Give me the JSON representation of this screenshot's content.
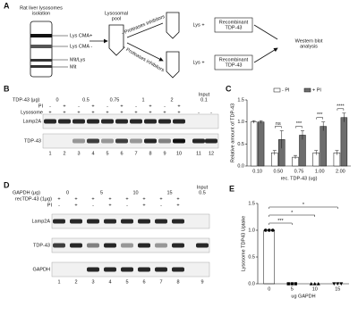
{
  "panels": [
    "A",
    "B",
    "C",
    "D",
    "E"
  ],
  "schematic": {
    "title": [
      "Rat liver lysosomes",
      "isolation"
    ],
    "fractions": [
      "Lys CMA+",
      "Lys CMA -",
      "Mit/Lys",
      "Mit"
    ],
    "pool": [
      "Lysosomal",
      "pool"
    ],
    "inhibitors": [
      "- Proteases inhibitors",
      "+ Proteases inhibitors"
    ],
    "lys": [
      "Lys +",
      "Lys +"
    ],
    "recombinant": [
      [
        "Recombinant",
        "TDP-43"
      ],
      [
        "Recombinant",
        "TDP-43"
      ]
    ],
    "western": [
      "Western blot",
      "analysis"
    ]
  },
  "blot_b": {
    "group_label": "TDP-43 (μg)",
    "groups": [
      "0",
      "0.5",
      "0.75",
      "1",
      "2"
    ],
    "input_label": "Input",
    "input_amount": "0.1",
    "rows": [
      {
        "label": "PI",
        "signs": [
          "-",
          "+",
          "-",
          "+",
          "-",
          "+",
          "-",
          "+",
          "-",
          "+"
        ]
      },
      {
        "label": "Lysosome",
        "signs": [
          "+",
          "+",
          "+",
          "+",
          "+",
          "+",
          "+",
          "+",
          "+",
          "+",
          "-",
          "-"
        ]
      }
    ],
    "bands": [
      "Lamp2A",
      "TDP-43"
    ],
    "lanes": [
      "1",
      "2",
      "3",
      "4",
      "5",
      "6",
      "7",
      "8",
      "9",
      "10",
      "11",
      "12"
    ]
  },
  "blot_d": {
    "group_label": "GAPDH (μg)",
    "groups": [
      "0",
      "5",
      "10",
      "15"
    ],
    "input_label": "Input",
    "input_amount": "0.5",
    "rows": [
      {
        "label": "recTDP-43 (1μg)",
        "signs": [
          "+",
          "+",
          "+",
          "+",
          "+",
          "+",
          "+",
          "+"
        ]
      },
      {
        "label": "PI",
        "signs": [
          "-",
          "+",
          "-",
          "+",
          "-",
          "+",
          "-",
          "+"
        ]
      }
    ],
    "bands": [
      "Lamp2A",
      "TDP-43",
      "GAPDH"
    ],
    "lanes": [
      "1",
      "2",
      "3",
      "4",
      "5",
      "6",
      "7",
      "8",
      "9"
    ]
  },
  "chart_data": [
    {
      "type": "bar",
      "xlabel": "rec. TDP-43 (ug)",
      "ylabel": "Relative amount of TDP-43",
      "categories": [
        "0.10",
        "0.50",
        "0.75",
        "1.00",
        "2.00"
      ],
      "series": [
        {
          "name": "- PI",
          "color": "#ffffff",
          "values": [
            1.0,
            0.3,
            0.2,
            0.3,
            0.3
          ],
          "errors": [
            0.03,
            0.05,
            0.04,
            0.05,
            0.05
          ]
        },
        {
          "name": "+ PI",
          "color": "#6d6d6d",
          "values": [
            1.0,
            0.6,
            0.7,
            0.9,
            1.1
          ],
          "errors": [
            0.03,
            0.2,
            0.1,
            0.1,
            0.1
          ]
        }
      ],
      "annotations": [
        "ns",
        "***",
        "***",
        "****"
      ],
      "ylim": [
        0,
        1.5
      ],
      "yticks": [
        {
          "value": 0,
          "label": "0.0"
        },
        0.5,
        {
          "value": 1,
          "label": "1.0"
        },
        1.5
      ],
      "legend": "top"
    },
    {
      "type": "scatter",
      "xlabel": "ug GAPDH",
      "ylabel": "Lysosome TDP43 Uptake",
      "categories": [
        "0",
        "5",
        "10",
        "15"
      ],
      "values": [
        [
          1,
          1,
          1
        ],
        [
          0,
          0,
          0
        ],
        [
          0,
          0,
          0
        ],
        [
          0,
          0,
          0
        ]
      ],
      "color": "#000000",
      "annotations": [
        "***",
        "*",
        "*"
      ],
      "ylim": [
        0,
        1.5
      ],
      "yticks": [
        {
          "value": 0,
          "label": "0.0"
        },
        0.5,
        {
          "value": 1,
          "label": "1.0"
        },
        1.5
      ]
    }
  ]
}
